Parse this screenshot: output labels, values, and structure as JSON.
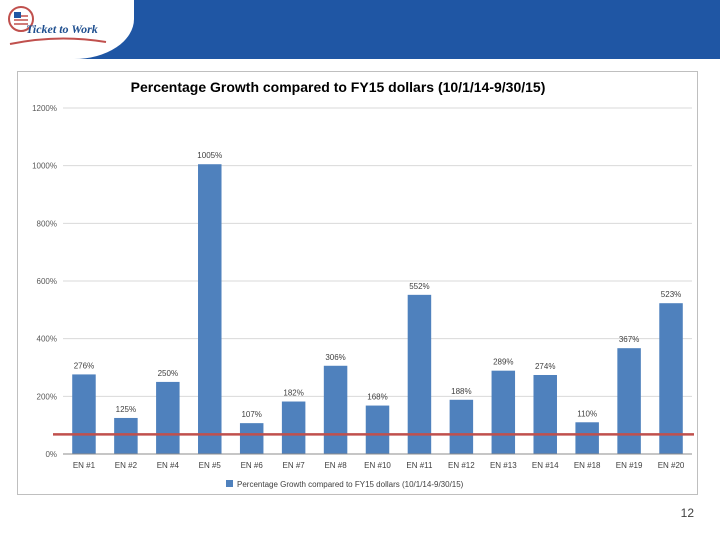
{
  "logo": {
    "text": "Ticket to Work"
  },
  "page_number": "12",
  "colors": {
    "header": "#1f56a4",
    "bar": "#4f81bd",
    "reference_line": "#c0504d",
    "grid": "#d9d9d9"
  },
  "chart_data": {
    "type": "bar",
    "title": "Percentage Growth compared to FY15 dollars (10/1/14-9/30/15)",
    "categories": [
      "EN #1",
      "EN #2",
      "EN #4",
      "EN #5",
      "EN #6",
      "EN #7",
      "EN #8",
      "EN #10",
      "EN #11",
      "EN #12",
      "EN #13",
      "EN #14",
      "EN #18",
      "EN #19",
      "EN #20"
    ],
    "values": [
      276,
      125,
      250,
      1005,
      107,
      182,
      306,
      168,
      552,
      188,
      289,
      274,
      110,
      367,
      523
    ],
    "data_labels": [
      "276%",
      "125%",
      "250%",
      "1005%",
      "107%",
      "182%",
      "306%",
      "168%",
      "552%",
      "188%",
      "289%",
      "274%",
      "110%",
      "367%",
      "523%"
    ],
    "series_name": "Percentage Growth compared to FY15 dollars (10/1/14-9/30/15)",
    "ylim": [
      0,
      1200
    ],
    "yticks": [
      0,
      200,
      400,
      600,
      800,
      1000,
      1200
    ],
    "ytick_labels": [
      "0%",
      "200%",
      "400%",
      "600%",
      "800%",
      "1000%",
      "1200%"
    ],
    "reference_line_value": 68,
    "grid": true,
    "legend": "bottom",
    "xlabel": "",
    "ylabel": ""
  }
}
